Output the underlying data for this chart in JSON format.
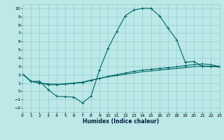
{
  "xlabel": "Humidex (Indice chaleur)",
  "background_color": "#bce8e8",
  "grid_color": "#98cece",
  "line_color": "#006868",
  "xlim": [
    0,
    23
  ],
  "ylim": [
    -2.5,
    10.5
  ],
  "xticks": [
    0,
    1,
    2,
    3,
    4,
    5,
    6,
    7,
    8,
    9,
    10,
    11,
    12,
    13,
    14,
    15,
    16,
    17,
    18,
    19,
    20,
    21,
    22,
    23
  ],
  "yticks": [
    -2,
    -1,
    0,
    1,
    2,
    3,
    4,
    5,
    6,
    7,
    8,
    9,
    10
  ],
  "line1_x": [
    0,
    1,
    2,
    3,
    4,
    5,
    6,
    7,
    8,
    9,
    10,
    11,
    12,
    13,
    14,
    15,
    16,
    17,
    18,
    19,
    20,
    21,
    22,
    23
  ],
  "line1_y": [
    2.1,
    1.2,
    1.2,
    0.2,
    -0.6,
    -0.65,
    -0.7,
    -1.4,
    -0.6,
    2.6,
    5.2,
    7.2,
    9.1,
    9.8,
    10.0,
    10.0,
    9.1,
    7.6,
    6.2,
    3.5,
    3.6,
    3.0,
    3.0,
    3.0
  ],
  "line2_x": [
    0,
    1,
    2,
    3,
    4,
    5,
    6,
    7,
    8,
    9,
    10,
    11,
    12,
    13,
    14,
    15,
    16,
    17,
    18,
    19,
    20,
    21,
    22,
    23
  ],
  "line2_y": [
    2.1,
    1.2,
    1.0,
    0.8,
    0.8,
    0.85,
    0.95,
    1.05,
    1.3,
    1.55,
    1.8,
    2.0,
    2.2,
    2.4,
    2.55,
    2.65,
    2.75,
    2.85,
    2.95,
    3.1,
    3.2,
    3.3,
    3.2,
    3.0
  ],
  "line3_x": [
    0,
    1,
    2,
    3,
    4,
    5,
    6,
    7,
    8,
    9,
    10,
    11,
    12,
    13,
    14,
    15,
    16,
    17,
    18,
    19,
    20,
    21,
    22,
    23
  ],
  "line3_y": [
    2.1,
    1.2,
    1.0,
    0.9,
    0.85,
    0.9,
    1.0,
    1.1,
    1.35,
    1.55,
    1.75,
    1.9,
    2.05,
    2.2,
    2.35,
    2.45,
    2.55,
    2.65,
    2.75,
    2.85,
    2.95,
    3.05,
    3.0,
    2.9
  ]
}
